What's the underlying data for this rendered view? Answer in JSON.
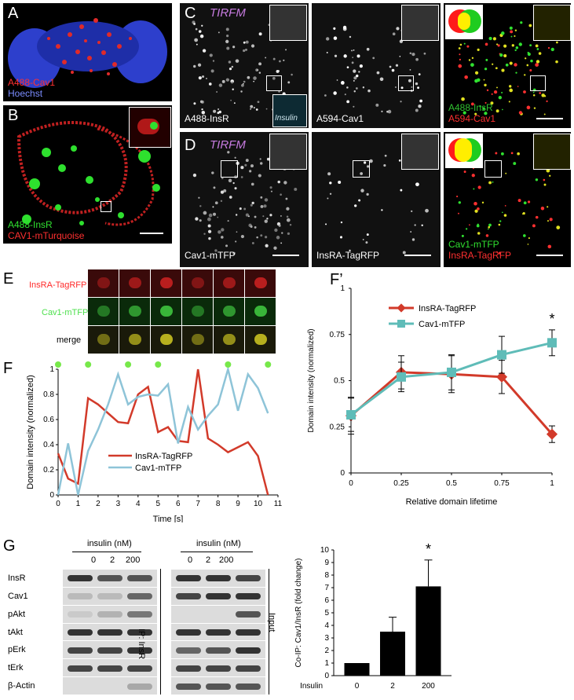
{
  "panels": {
    "A": {
      "letter": "A",
      "labels": [
        "A488-Cav1",
        "Hoechst"
      ],
      "colors": [
        "#ff3030",
        "#5a6cff"
      ]
    },
    "B": {
      "letter": "B",
      "labels": [
        "A488-InsR",
        "CAV1-mTurquoise"
      ],
      "colors": [
        "#30e030",
        "#ff3030"
      ]
    },
    "C": {
      "letter": "C",
      "tirfm": "TIRFM",
      "sub": [
        "A488-InsR",
        "A594-Cav1"
      ],
      "merge": [
        "A488-InsR",
        "A594-Cav1"
      ],
      "inset_label": "Insulin"
    },
    "D": {
      "letter": "D",
      "tirfm": "TIRFM",
      "sub": [
        "Cav1-mTFP",
        "InsRA-TagRFP"
      ],
      "merge": [
        "Cav1-mTFP",
        "InsRA-TagRFP"
      ]
    },
    "E": {
      "letter": "E",
      "rows": [
        "InsRA-TagRFP",
        "Cav1-mTFP",
        "merge"
      ]
    },
    "G": {
      "letter": "G",
      "insulin_header": "insulin (nM)",
      "doses": [
        "0",
        "2",
        "200"
      ],
      "rows": [
        "InsR",
        "Cav1",
        "pAkt",
        "tAkt",
        "pErk",
        "tErk",
        "β-Actin"
      ],
      "ip_label": "IP: InsR",
      "input_label": "Input"
    }
  },
  "chart_data": [
    {
      "id": "F",
      "type": "line",
      "letter": "F",
      "x": [
        0,
        0.5,
        1,
        1.5,
        2,
        2.5,
        3,
        3.5,
        4,
        4.5,
        5,
        5.5,
        6,
        6.5,
        7,
        7.5,
        8,
        8.5,
        9,
        9.5,
        10,
        10.5
      ],
      "series": [
        {
          "name": "InsRA-TagRFP",
          "color": "#d23a2a",
          "values": [
            0.33,
            0.13,
            0.09,
            0.77,
            0.72,
            0.65,
            0.58,
            0.57,
            0.8,
            0.86,
            0.5,
            0.54,
            0.43,
            0.42,
            1.0,
            0.45,
            0.4,
            0.34,
            0.38,
            0.42,
            0.31,
            0.0
          ]
        },
        {
          "name": "Cav1-mTFP",
          "color": "#8ec4d8",
          "values": [
            0.0,
            0.41,
            0.0,
            0.35,
            0.52,
            0.72,
            0.96,
            0.72,
            0.78,
            0.8,
            0.79,
            0.88,
            0.41,
            0.7,
            0.52,
            0.63,
            0.72,
            1.0,
            0.67,
            0.96,
            0.85,
            0.65
          ]
        }
      ],
      "markers_x": [
        0,
        1.5,
        3.5,
        5,
        8.5,
        10.5
      ],
      "marker_color": "#77e84a",
      "xticks": [
        "0",
        "1",
        "2",
        "3",
        "4",
        "5",
        "6",
        "7",
        "8",
        "9",
        "10",
        "11"
      ],
      "yticks": [
        "0",
        "0.2",
        "0.4",
        "0.6",
        "0.8",
        "1"
      ],
      "xlabel": "Time [s]",
      "ylabel": "Domain intensity (normalized)",
      "xlim": [
        0,
        11
      ],
      "ylim": [
        0,
        1
      ]
    },
    {
      "id": "F_prime",
      "type": "line",
      "letter": "F’",
      "x": [
        0,
        0.25,
        0.5,
        0.75,
        1
      ],
      "series": [
        {
          "name": "InsRA-TagRFP",
          "color": "#d23a2a",
          "values": [
            0.31,
            0.545,
            0.535,
            0.52,
            0.21
          ],
          "errors": [
            0.1,
            0.09,
            0.1,
            0.09,
            0.045
          ]
        },
        {
          "name": "Cav1-mTFP",
          "color": "#5fbcb8",
          "values": [
            0.315,
            0.52,
            0.545,
            0.64,
            0.705
          ],
          "errors": [
            0.09,
            0.08,
            0.095,
            0.1,
            0.07
          ]
        }
      ],
      "xticks": [
        "0",
        "0.25",
        "0.5",
        "0.75",
        "1"
      ],
      "yticks": [
        "0",
        "0.25",
        "0.5",
        "0.75",
        "1"
      ],
      "xlabel": "Relative domain lifetime",
      "ylabel": "Domain intensity (normalized)",
      "significance": "*",
      "xlim": [
        0,
        1
      ],
      "ylim": [
        0,
        1
      ]
    },
    {
      "id": "G_bar",
      "type": "bar",
      "categories": [
        "0",
        "2",
        "200"
      ],
      "values": [
        1.0,
        3.5,
        7.1
      ],
      "errors": [
        0,
        1.15,
        2.1
      ],
      "category_title": "Insulin",
      "ylabel": "Co-IP: Cav1/InsR (fold change)",
      "yticks": [
        "0",
        "1",
        "2",
        "3",
        "4",
        "5",
        "6",
        "7",
        "8",
        "9",
        "10"
      ],
      "significance": "*",
      "ylim": [
        0,
        10
      ]
    }
  ]
}
